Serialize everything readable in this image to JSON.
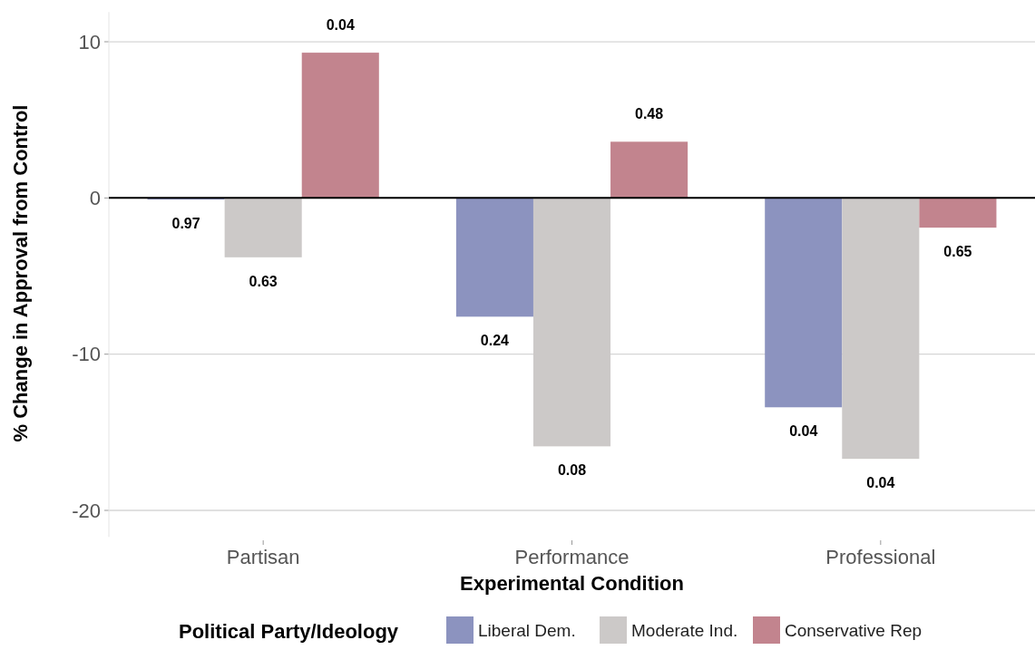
{
  "chart_data": {
    "type": "bar",
    "xlabel": "Experimental Condition",
    "ylabel": "% Change in Approval from Control",
    "legend_title": "Political Party/Ideology",
    "categories": [
      "Partisan",
      "Performance",
      "Professional"
    ],
    "series": [
      {
        "name": "Liberal Dem.",
        "color": "#8c93bf",
        "values": [
          -0.1,
          -7.6,
          -13.4
        ]
      },
      {
        "name": "Moderate Ind.",
        "color": "#ccc9c8",
        "values": [
          -3.8,
          -15.9,
          -16.7
        ]
      },
      {
        "name": "Conservative Rep",
        "color": "#c2848e",
        "values": [
          9.3,
          3.6,
          -1.9
        ]
      }
    ],
    "annotations": [
      "0.97",
      "0.24",
      "0.04",
      "0.63",
      "0.08",
      "0.04",
      "0.04",
      "0.48",
      "0.65"
    ],
    "ylim": [
      -21.7,
      11.9
    ],
    "yticks": [
      -20,
      -10,
      0,
      10
    ],
    "grid": "y",
    "legend": "bottom",
    "ref_lines": [
      {
        "axis": "y",
        "value": 0,
        "color": "#000000"
      }
    ]
  }
}
